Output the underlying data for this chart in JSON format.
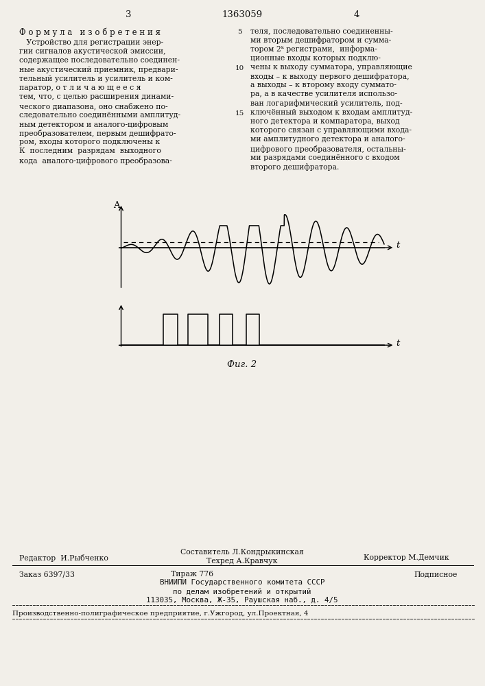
{
  "background_color": "#f2efe9",
  "page_width": 7.07,
  "page_height": 10.0,
  "header_number": "1363059",
  "header_left_page": "3",
  "header_right_page": "4",
  "formula_title": "Ф о р м у л а   и з о б р е т е н и я",
  "left_col": [
    "   Устройство для регистрации энер-",
    "гии сигналов акустической эмиссии,",
    "содержащее последовательно соединен-",
    "ные акустический приемник, предвари-",
    "тельный усилитель и усилитель и ком-",
    "паратор, о т л и ч а ю щ е е с я",
    "тем, что, с целью расширения динами-",
    "ческого диапазона, оно снабжено по-",
    "следовательно соединёнными амплитуд-",
    "ным детектором и аналого-цифровым",
    "преобразователем, первым дешифрато-",
    "ром, входы которого подключены к",
    "К  последним  разрядам  выходного",
    "кода  аналого-цифрового преобразова-"
  ],
  "right_col": [
    "теля, последовательно соединенны-",
    "ми вторым дешифратором и сумма-",
    "тором 2ᵏ регистрами,  информа-",
    "ционные входы которых подклю-",
    "чены к выходу сумматора, управляющие",
    "входы – к выходу первого дешифратора,",
    "а выходы – к второму входу суммато-",
    "ра, а в качестве усилителя использо-",
    "ван логарифмический усилитель, под-",
    "ключённый выходом к входам амплитуд-",
    "ного детектора и компаратора, выход",
    "которого связан с управляющими входа-",
    "ми амплитудного детектора и аналого-",
    "цифрового преобразователя, остальны-",
    "ми разрядами соединённого с входом",
    "второго дешифратора."
  ],
  "line_numbers": [
    [
      0,
      "5"
    ],
    [
      4,
      "10"
    ],
    [
      9,
      "15"
    ]
  ],
  "fig_caption": "Фиг. 2",
  "footer": {
    "editor": "Редактор  И.Рыбченко",
    "compiler": "Составитель Л.Кондрыкинская",
    "techred": "Техред А.Кравчук",
    "corrector": "Корректор М.Демчик",
    "order": "Заказ 6397/33",
    "circulation": "Тираж 776",
    "subscription": "Подписное",
    "org1": "ВНИИПИ Государственного комитета СССР",
    "org2": "по делам изобретений и открытий",
    "org3": "113035, Москва, Ж-35, Раушская наб., д. 4/5",
    "printer": "Производственно-полиграфическое предприятие, г.Ужгород, ул.Проектная, 4"
  }
}
